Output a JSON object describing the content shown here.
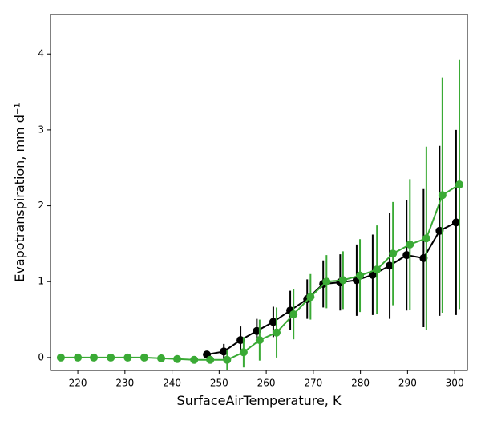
{
  "chart_data": {
    "type": "line",
    "xlabel": "SurfaceAirTemperature,  K",
    "ylabel": "Evapotranspiration,  mm d⁻¹",
    "xlim": [
      214.2,
      302.7
    ],
    "ylim": [
      -0.17,
      4.52
    ],
    "xticks": [
      220,
      230,
      240,
      250,
      260,
      270,
      280,
      290,
      300
    ],
    "yticks": [
      0,
      1,
      2,
      3,
      4
    ],
    "series": [
      {
        "color": "#000000",
        "x": [
          247.4,
          251.0,
          254.55,
          258.0,
          261.5,
          265.1,
          268.7,
          272.1,
          275.7,
          279.2,
          282.6,
          286.2,
          289.8,
          293.4,
          296.8,
          300.3
        ],
        "values": [
          0.04,
          0.08,
          0.23,
          0.35,
          0.47,
          0.62,
          0.77,
          0.97,
          0.99,
          1.02,
          1.09,
          1.21,
          1.35,
          1.31,
          1.67,
          1.78
        ],
        "errors": [
          0.03,
          0.1,
          0.18,
          0.16,
          0.2,
          0.26,
          0.26,
          0.31,
          0.37,
          0.47,
          0.53,
          0.7,
          0.73,
          0.91,
          1.12,
          1.22
        ]
      },
      {
        "color": "#3aaa35",
        "x": [
          216.4,
          220.0,
          223.4,
          227.0,
          230.6,
          234.1,
          237.7,
          241.1,
          244.7,
          248.1,
          251.7,
          255.2,
          258.6,
          262.2,
          265.8,
          269.4,
          272.8,
          276.3,
          279.9,
          283.5,
          286.9,
          290.5,
          294.0,
          297.4,
          301.0
        ],
        "values": [
          0.0,
          0.0,
          0.0,
          0.0,
          0.0,
          0.0,
          -0.01,
          -0.02,
          -0.03,
          -0.03,
          -0.03,
          0.07,
          0.23,
          0.33,
          0.57,
          0.8,
          1.0,
          1.02,
          1.08,
          1.16,
          1.37,
          1.49,
          1.57,
          2.14,
          2.28
        ],
        "errors": [
          null,
          null,
          null,
          null,
          null,
          null,
          null,
          null,
          null,
          null,
          0.13,
          0.2,
          0.27,
          0.33,
          0.33,
          0.3,
          0.35,
          0.38,
          0.48,
          0.58,
          0.68,
          0.86,
          1.21,
          1.55,
          1.64
        ]
      }
    ]
  }
}
